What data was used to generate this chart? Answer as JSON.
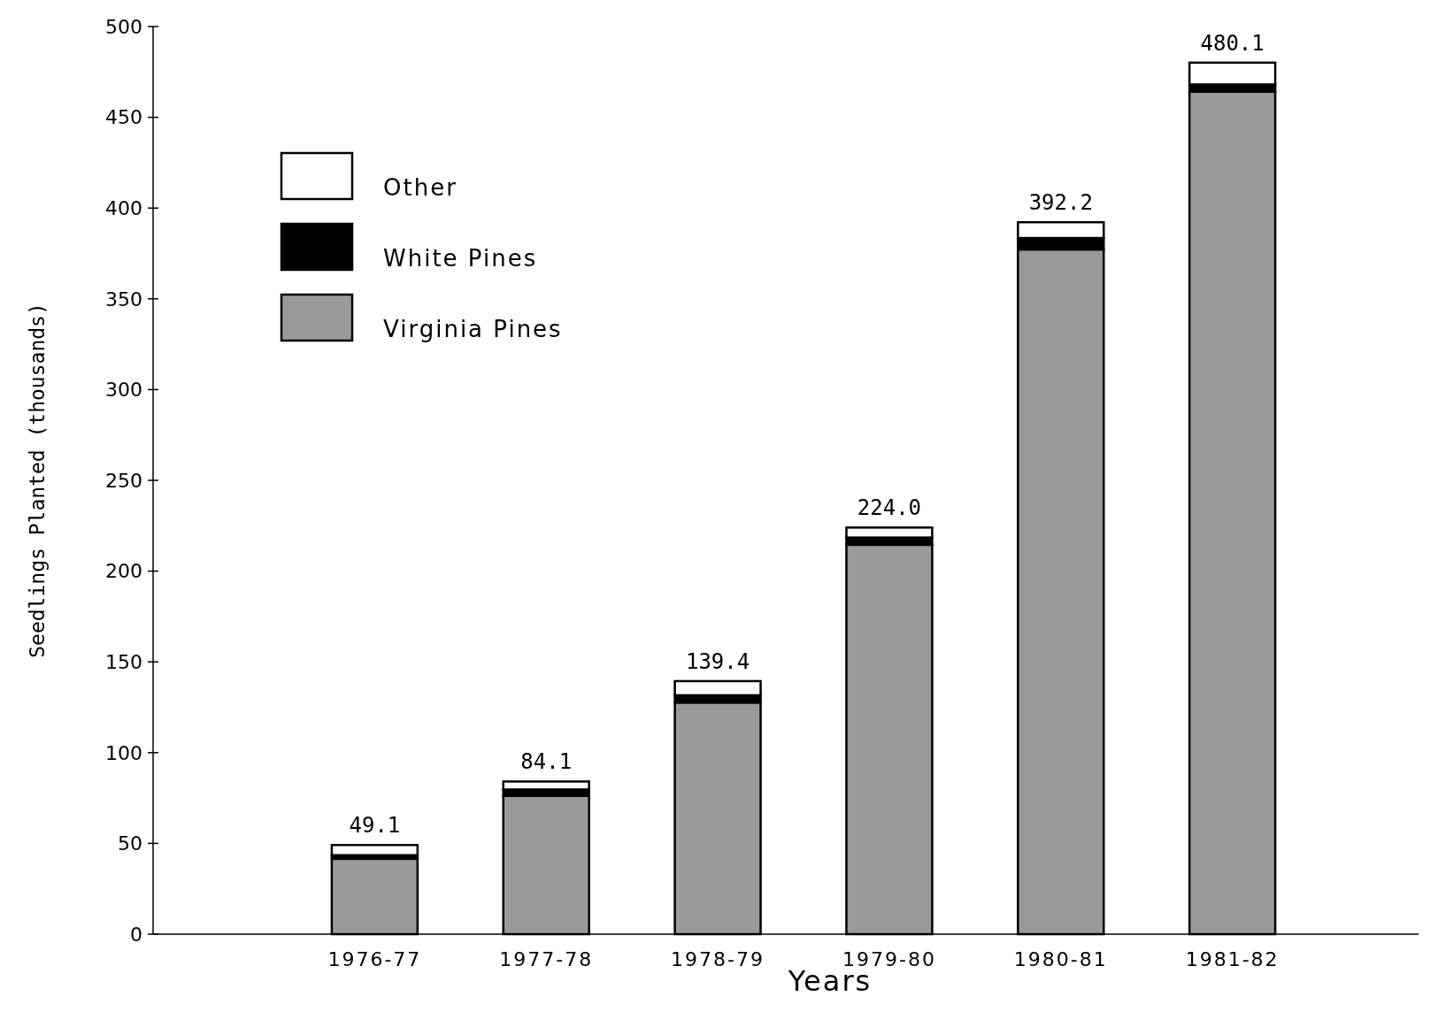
{
  "chart_data": {
    "type": "bar",
    "stacked": true,
    "xlabel": "Years",
    "ylabel": "Seedlings Planted (thousands)",
    "categories": [
      "1976-77",
      "1977-78",
      "1978-79",
      "1979-80",
      "1980-81",
      "1981-82"
    ],
    "series": [
      {
        "name": "Virginia Pines",
        "color": "#9a9a9a",
        "values": [
          41.5,
          76.2,
          127.6,
          214.5,
          377.2,
          464.1
        ]
      },
      {
        "name": "White Pines",
        "color": "#000000",
        "values": [
          2.0,
          3.5,
          4.0,
          4.0,
          6.3,
          4.0
        ]
      },
      {
        "name": "Other",
        "color": "#ffffff",
        "values": [
          5.6,
          4.4,
          7.8,
          5.5,
          8.7,
          12.0
        ]
      }
    ],
    "totals": [
      "49.1",
      "84.1",
      "139.4",
      "224.0",
      "392.2",
      "480.1"
    ],
    "ylim": [
      0,
      500
    ],
    "yticks": [
      0,
      50,
      100,
      150,
      200,
      250,
      300,
      350,
      400,
      450,
      500
    ],
    "grid": false,
    "legend": "top left"
  }
}
